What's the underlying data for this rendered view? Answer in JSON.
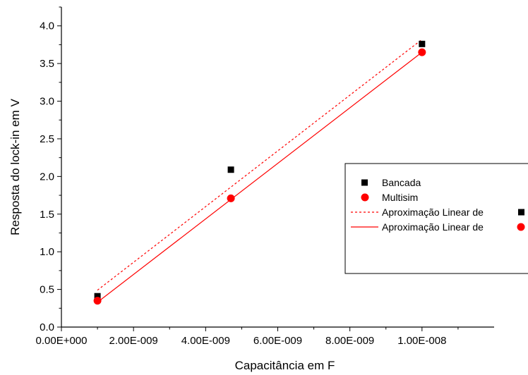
{
  "chart_data": {
    "type": "scatter",
    "title": "",
    "xlabel": "Capacitância em F",
    "ylabel": "Resposta do lock-in em V",
    "xlim": [
      0,
      1.2e-08
    ],
    "ylim": [
      0,
      4.25
    ],
    "x_ticks": [
      {
        "value": 0,
        "label": "0.00E+000"
      },
      {
        "value": 2e-09,
        "label": "2.00E-009"
      },
      {
        "value": 4e-09,
        "label": "4.00E-009"
      },
      {
        "value": 6e-09,
        "label": "6.00E-009"
      },
      {
        "value": 8e-09,
        "label": "8.00E-009"
      },
      {
        "value": 1e-08,
        "label": "1.00E-008"
      }
    ],
    "y_ticks": [
      {
        "value": 0.0,
        "label": "0.0"
      },
      {
        "value": 0.5,
        "label": "0.5"
      },
      {
        "value": 1.0,
        "label": "1.0"
      },
      {
        "value": 1.5,
        "label": "1.5"
      },
      {
        "value": 2.0,
        "label": "2.0"
      },
      {
        "value": 2.5,
        "label": "2.5"
      },
      {
        "value": 3.0,
        "label": "3.0"
      },
      {
        "value": 3.5,
        "label": "3.5"
      },
      {
        "value": 4.0,
        "label": "4.0"
      }
    ],
    "grid": false,
    "legend_position": "right",
    "series": [
      {
        "name": "Bancada",
        "kind": "scatter",
        "marker": "square",
        "color": "#000000",
        "x": [
          1e-09,
          4.7e-09,
          1e-08
        ],
        "y": [
          0.41,
          2.09,
          3.76
        ]
      },
      {
        "name": "Multisim",
        "kind": "scatter",
        "marker": "circle",
        "color": "#ff0000",
        "x": [
          1e-09,
          4.7e-09,
          1e-08
        ],
        "y": [
          0.35,
          1.71,
          3.65
        ]
      }
    ],
    "fits": [
      {
        "name": "Aproximação Linear de",
        "legend_marker": "square",
        "style": "dashed",
        "color": "#ff0000",
        "x": [
          1e-09,
          1e-08
        ],
        "y": [
          0.49,
          3.82
        ]
      },
      {
        "name": "Aproximação Linear de",
        "legend_marker": "circle",
        "style": "solid",
        "color": "#ff0000",
        "x": [
          1e-09,
          1e-08
        ],
        "y": [
          0.33,
          3.65
        ]
      }
    ]
  }
}
